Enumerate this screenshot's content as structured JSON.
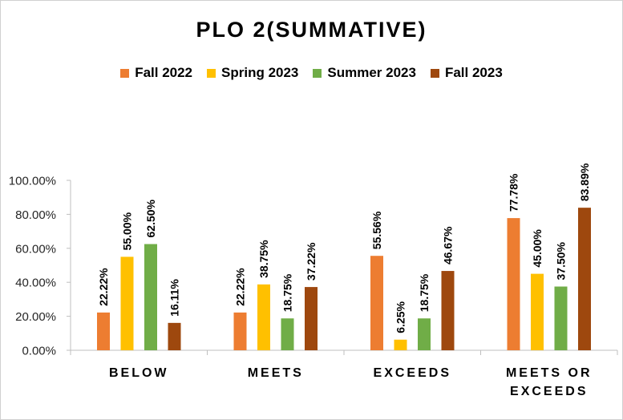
{
  "chart_data": {
    "type": "bar",
    "title": "PLO 2(SUMMATIVE)",
    "xlabel": "",
    "ylabel": "",
    "ylim": [
      0,
      100
    ],
    "yticks": [
      "0.00%",
      "20.00%",
      "40.00%",
      "60.00%",
      "80.00%",
      "100.00%"
    ],
    "ytick_values": [
      0,
      20,
      40,
      60,
      80,
      100
    ],
    "grid": false,
    "legend_position": "top",
    "categories": [
      [
        "BELOW"
      ],
      [
        "MEETS"
      ],
      [
        "EXCEEDS"
      ],
      [
        "MEETS OR",
        "EXCEEDS"
      ]
    ],
    "series": [
      {
        "name": "Fall 2022",
        "color": "#ED7D31",
        "values": [
          22.22,
          22.22,
          55.56,
          77.78
        ],
        "labels": [
          "22.22%",
          "22.22%",
          "55.56%",
          "77.78%"
        ]
      },
      {
        "name": "Spring 2023",
        "color": "#FFC000",
        "values": [
          55.0,
          38.75,
          6.25,
          45.0
        ],
        "labels": [
          "55.00%",
          "38.75%",
          "6.25%",
          "45.00%"
        ]
      },
      {
        "name": "Summer 2023",
        "color": "#70AD47",
        "values": [
          62.5,
          18.75,
          18.75,
          37.5
        ],
        "labels": [
          "62.50%",
          "18.75%",
          "18.75%",
          "37.50%"
        ]
      },
      {
        "name": "Fall 2023",
        "color": "#9E480E",
        "values": [
          16.11,
          37.22,
          46.67,
          83.89
        ],
        "labels": [
          "16.11%",
          "37.22%",
          "46.67%",
          "83.89%"
        ]
      }
    ]
  }
}
